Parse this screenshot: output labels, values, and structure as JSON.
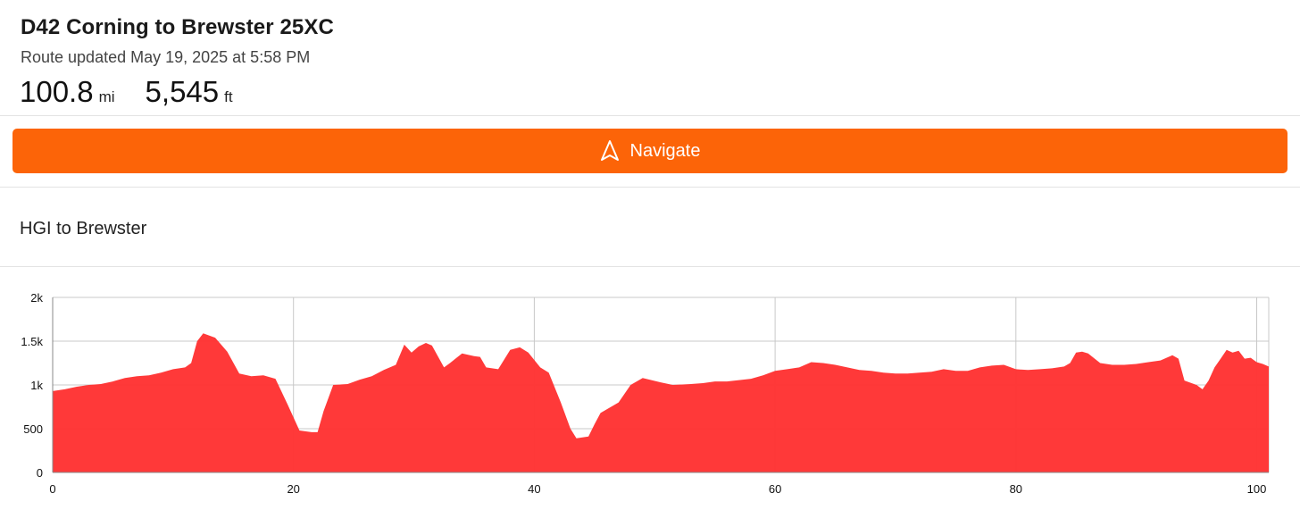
{
  "route": {
    "title": "D42 Corning to Brewster 25XC",
    "updated": "Route updated May 19, 2025 at 5:58 PM",
    "distance": {
      "value": "100.8",
      "unit": "mi"
    },
    "elevation": {
      "value": "5,545",
      "unit": "ft"
    }
  },
  "navigate_button": {
    "label": "Navigate",
    "icon": "navigation-arrow-icon",
    "color": "#fc6408"
  },
  "segment": {
    "title": "HGI to Brewster"
  },
  "chart_data": {
    "type": "area",
    "xlim": [
      0,
      101
    ],
    "ylim": [
      0,
      2000
    ],
    "x_ticks": [
      0,
      20,
      40,
      60,
      80,
      100
    ],
    "y_ticks": [
      0,
      500,
      1000,
      1500,
      2000
    ],
    "x_tick_labels": [
      "0",
      "20",
      "40",
      "60",
      "80",
      "100"
    ],
    "y_tick_labels": [
      "0",
      "500",
      "1k",
      "1.5k",
      "2k"
    ],
    "grid": true,
    "fill_color": "#ff3333",
    "series": [
      {
        "points": [
          [
            0,
            930
          ],
          [
            1,
            950
          ],
          [
            2,
            980
          ],
          [
            3,
            1000
          ],
          [
            4,
            1010
          ],
          [
            5,
            1040
          ],
          [
            6,
            1080
          ],
          [
            7,
            1100
          ],
          [
            8,
            1110
          ],
          [
            9,
            1140
          ],
          [
            10,
            1180
          ],
          [
            11,
            1200
          ],
          [
            11.5,
            1250
          ],
          [
            12,
            1500
          ],
          [
            12.5,
            1590
          ],
          [
            13.5,
            1540
          ],
          [
            14.5,
            1380
          ],
          [
            15.5,
            1130
          ],
          [
            16.5,
            1100
          ],
          [
            17.5,
            1110
          ],
          [
            18.5,
            1070
          ],
          [
            19.5,
            780
          ],
          [
            20.5,
            480
          ],
          [
            21.5,
            460
          ],
          [
            22,
            460
          ],
          [
            22.5,
            700
          ],
          [
            23.3,
            1000
          ],
          [
            24.5,
            1010
          ],
          [
            25.5,
            1060
          ],
          [
            26.5,
            1100
          ],
          [
            27.5,
            1170
          ],
          [
            28.5,
            1230
          ],
          [
            29.2,
            1460
          ],
          [
            29.8,
            1370
          ],
          [
            30.4,
            1440
          ],
          [
            31,
            1480
          ],
          [
            31.5,
            1450
          ],
          [
            32.5,
            1200
          ],
          [
            33,
            1250
          ],
          [
            34,
            1360
          ],
          [
            35,
            1330
          ],
          [
            35.5,
            1320
          ],
          [
            36,
            1200
          ],
          [
            37,
            1180
          ],
          [
            38,
            1400
          ],
          [
            38.8,
            1430
          ],
          [
            39.5,
            1370
          ],
          [
            40.5,
            1200
          ],
          [
            41.2,
            1140
          ],
          [
            42.2,
            800
          ],
          [
            43,
            500
          ],
          [
            43.5,
            390
          ],
          [
            44.5,
            410
          ],
          [
            45,
            550
          ],
          [
            45.5,
            680
          ],
          [
            47,
            800
          ],
          [
            48,
            1000
          ],
          [
            49,
            1080
          ],
          [
            50.5,
            1030
          ],
          [
            51.5,
            1000
          ],
          [
            53,
            1010
          ],
          [
            54,
            1020
          ],
          [
            55,
            1040
          ],
          [
            56,
            1040
          ],
          [
            58,
            1070
          ],
          [
            59,
            1110
          ],
          [
            60,
            1160
          ],
          [
            61,
            1180
          ],
          [
            62,
            1200
          ],
          [
            63,
            1260
          ],
          [
            64,
            1250
          ],
          [
            65,
            1230
          ],
          [
            66,
            1200
          ],
          [
            67,
            1170
          ],
          [
            68,
            1160
          ],
          [
            69,
            1140
          ],
          [
            70,
            1130
          ],
          [
            71,
            1130
          ],
          [
            72,
            1140
          ],
          [
            73,
            1150
          ],
          [
            74,
            1180
          ],
          [
            75,
            1160
          ],
          [
            76,
            1160
          ],
          [
            77,
            1200
          ],
          [
            78,
            1220
          ],
          [
            79,
            1230
          ],
          [
            80,
            1180
          ],
          [
            81,
            1170
          ],
          [
            82,
            1180
          ],
          [
            83,
            1190
          ],
          [
            84,
            1210
          ],
          [
            84.5,
            1250
          ],
          [
            85,
            1370
          ],
          [
            85.5,
            1380
          ],
          [
            86,
            1360
          ],
          [
            87,
            1250
          ],
          [
            88,
            1230
          ],
          [
            89,
            1230
          ],
          [
            90,
            1240
          ],
          [
            91,
            1260
          ],
          [
            92,
            1280
          ],
          [
            93,
            1340
          ],
          [
            93.5,
            1300
          ],
          [
            94,
            1050
          ],
          [
            95,
            1000
          ],
          [
            95.5,
            950
          ],
          [
            96,
            1050
          ],
          [
            96.5,
            1200
          ],
          [
            97,
            1300
          ],
          [
            97.5,
            1400
          ],
          [
            98,
            1370
          ],
          [
            98.5,
            1390
          ],
          [
            99,
            1300
          ],
          [
            99.5,
            1310
          ],
          [
            100,
            1260
          ],
          [
            100.5,
            1240
          ],
          [
            101,
            1210
          ]
        ]
      }
    ]
  }
}
